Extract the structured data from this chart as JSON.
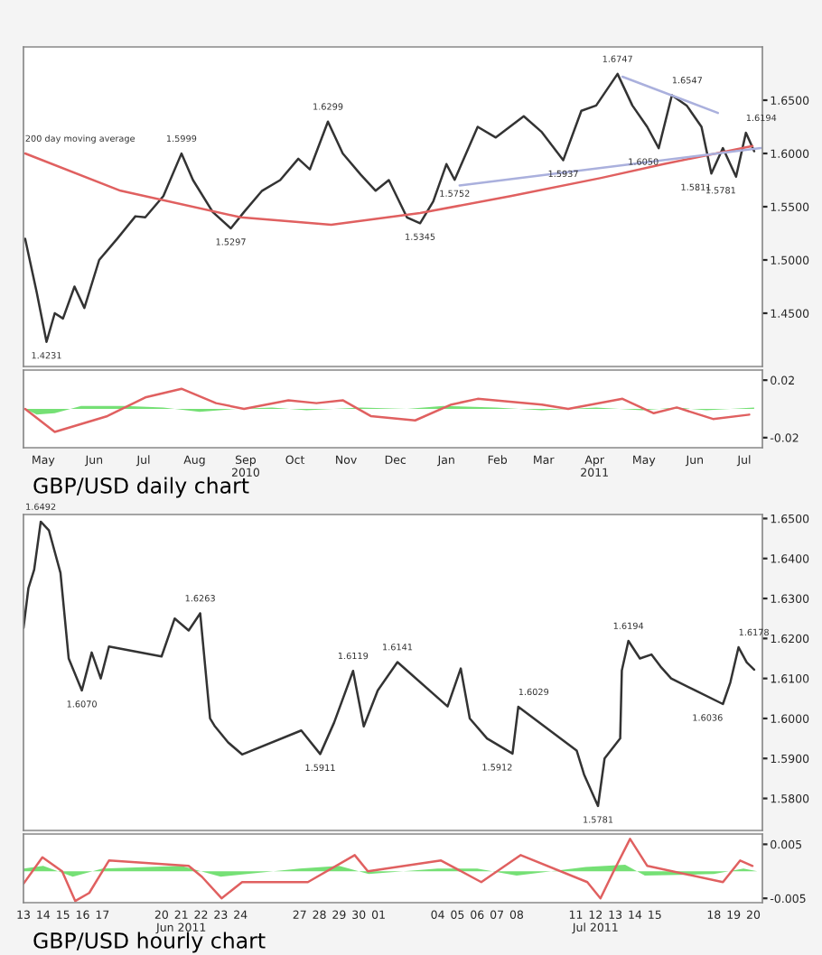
{
  "chart_data": [
    {
      "type": "line",
      "xlim": [
        "2010-04-19",
        "2011-07-12"
      ],
      "ylim": [
        1.4,
        1.7
      ],
      "xticks": [
        "2010-05-01",
        "2010-06-01",
        "2010-07-01",
        "2010-08-01",
        "2010-09-01",
        "2010-10-01",
        "2010-11-01",
        "2010-12-01",
        "2011-01-01",
        "2011-02-01",
        "2011-03-01",
        "2011-04-01",
        "2011-05-01",
        "2011-06-01",
        "2011-07-01"
      ],
      "yticks": [
        {
          "value": 1.45,
          "label": "1.4500"
        },
        {
          "value": 1.5,
          "label": "1.5000"
        },
        {
          "value": 1.55,
          "label": "1.5500"
        },
        {
          "value": 1.6,
          "label": "1.6000"
        },
        {
          "value": 1.65,
          "label": "1.6500"
        }
      ],
      "tick_labels": "y",
      "grid": false,
      "legend": false,
      "series": [
        {
          "color": "#333333",
          "x": [
            "2010-04-20",
            "2010-04-27",
            "2010-05-03",
            "2010-05-08",
            "2010-05-13",
            "2010-05-20",
            "2010-05-26",
            "2010-06-04",
            "2010-06-15",
            "2010-06-26",
            "2010-07-02",
            "2010-07-13",
            "2010-07-24",
            "2010-07-31",
            "2010-08-12",
            "2010-08-23",
            "2010-08-31",
            "2010-09-11",
            "2010-09-22",
            "2010-10-03",
            "2010-10-10",
            "2010-10-21",
            "2010-10-30",
            "2010-11-10",
            "2010-11-19",
            "2010-11-27",
            "2010-12-08",
            "2010-12-16",
            "2010-12-24",
            "2011-01-01",
            "2011-01-06",
            "2011-01-20",
            "2011-01-31",
            "2011-02-17",
            "2011-02-28",
            "2011-03-13",
            "2011-03-24",
            "2011-04-02",
            "2011-04-15",
            "2011-04-24",
            "2011-05-03",
            "2011-05-10",
            "2011-05-18",
            "2011-05-27",
            "2011-06-05",
            "2011-06-11",
            "2011-06-18",
            "2011-06-26",
            "2011-07-02",
            "2011-07-07"
          ],
          "values": [
            1.52,
            1.47,
            1.4231,
            1.45,
            1.445,
            1.475,
            1.455,
            1.5,
            1.52,
            1.541,
            1.54,
            1.56,
            1.5999,
            1.575,
            1.545,
            1.5297,
            1.545,
            1.565,
            1.575,
            1.595,
            1.585,
            1.6299,
            1.6,
            1.58,
            1.565,
            1.575,
            1.54,
            1.5345,
            1.555,
            1.59,
            1.5752,
            1.625,
            1.615,
            1.635,
            1.62,
            1.5937,
            1.64,
            1.645,
            1.6747,
            1.645,
            1.625,
            1.605,
            1.6547,
            1.645,
            1.625,
            1.5811,
            1.605,
            1.5781,
            1.6194,
            1.6021
          ]
        },
        {
          "color": "#e06060",
          "x": [
            "2010-04-20",
            "2010-06-17",
            "2010-08-29",
            "2010-10-23",
            "2010-12-16",
            "2011-02-09",
            "2011-04-05",
            "2011-05-13",
            "2011-07-06"
          ],
          "values": [
            1.6,
            1.565,
            1.54,
            1.533,
            1.544,
            1.56,
            1.577,
            1.59,
            1.607
          ]
        },
        {
          "color": "#aab0dd",
          "x": [
            "2011-01-09",
            "2011-07-11"
          ],
          "values": [
            1.57,
            1.605
          ]
        },
        {
          "color": "#aab0dd",
          "x": [
            "2011-04-18",
            "2011-06-15"
          ],
          "values": [
            1.672,
            1.638
          ]
        }
      ],
      "annotations": [
        {
          "text": "200 day moving average",
          "x": "2010-04-20",
          "y": 1.6
        },
        {
          "text": "1.4231",
          "x": "2010-05-03",
          "y": 1.4231
        },
        {
          "text": "1.5999",
          "x": "2010-07-24",
          "y": 1.5999
        },
        {
          "text": "1.5297",
          "x": "2010-08-23",
          "y": 1.5297
        },
        {
          "text": "1.6299",
          "x": "2010-10-21",
          "y": 1.6299
        },
        {
          "text": "1.5345",
          "x": "2010-12-16",
          "y": 1.5345
        },
        {
          "text": "1.5752",
          "x": "2011-01-06",
          "y": 1.5752
        },
        {
          "text": "1.5937",
          "x": "2011-03-13",
          "y": 1.5937
        },
        {
          "text": "1.6747",
          "x": "2011-04-15",
          "y": 1.6747
        },
        {
          "text": "1.6050",
          "x": "2011-05-10",
          "y": 1.605
        },
        {
          "text": "1.6547",
          "x": "2011-05-18",
          "y": 1.6547
        },
        {
          "text": "1.5811",
          "x": "2011-06-11",
          "y": 1.5811
        },
        {
          "text": "1.5781",
          "x": "2011-06-26",
          "y": 1.5781
        },
        {
          "text": "1.6194",
          "x": "2011-07-02",
          "y": 1.6194
        }
      ]
    },
    {
      "type": "line",
      "xlim": [
        "2010-04-19",
        "2011-07-12"
      ],
      "ylim": [
        -0.027,
        0.027
      ],
      "yticks": [
        {
          "value": -0.02,
          "label": "-0.02"
        },
        {
          "value": 0.02,
          "label": "0.02"
        }
      ],
      "xticks": [
        {
          "value": "2010-05-01",
          "label": "May"
        },
        {
          "value": "2010-06-01",
          "label": "Jun"
        },
        {
          "value": "2010-07-01",
          "label": "Jul"
        },
        {
          "value": "2010-08-01",
          "label": "Aug"
        },
        {
          "value": "2010-09-01",
          "label": "Sep\n2010"
        },
        {
          "value": "2010-10-01",
          "label": "Oct"
        },
        {
          "value": "2010-11-01",
          "label": "Nov"
        },
        {
          "value": "2010-12-01",
          "label": "Dec"
        },
        {
          "value": "2011-01-01",
          "label": "Jan"
        },
        {
          "value": "2011-02-01",
          "label": "Feb"
        },
        {
          "value": "2011-03-01",
          "label": "Mar"
        },
        {
          "value": "2011-04-01",
          "label": "Apr\n2011"
        },
        {
          "value": "2011-05-01",
          "label": "May"
        },
        {
          "value": "2011-06-01",
          "label": "Jun"
        },
        {
          "value": "2011-07-01",
          "label": "Jul"
        }
      ],
      "grid": false,
      "legend": false,
      "series": [
        {
          "type": "area",
          "color": "#66dd66",
          "x": [
            "2010-04-20",
            "2010-04-27",
            "2010-05-08",
            "2010-05-24",
            "2010-06-20",
            "2010-07-13",
            "2010-08-04",
            "2010-08-26",
            "2010-09-17",
            "2010-10-08",
            "2010-11-10",
            "2010-12-08",
            "2010-12-30",
            "2011-01-31",
            "2011-02-28",
            "2011-04-02",
            "2011-04-30",
            "2011-05-21",
            "2011-06-08",
            "2011-07-07"
          ],
          "values": [
            0,
            -0.004,
            -0.003,
            0.002,
            0.002,
            0.001,
            -0.002,
            0,
            0.001,
            -0.001,
            0.001,
            0,
            0.002,
            0.001,
            -0.001,
            0.001,
            -0.001,
            0.001,
            -0.001,
            0.001
          ]
        },
        {
          "color": "#e06060",
          "x": [
            "2010-04-20",
            "2010-05-08",
            "2010-06-09",
            "2010-07-02",
            "2010-07-24",
            "2010-08-14",
            "2010-08-31",
            "2010-09-27",
            "2010-10-14",
            "2010-10-30",
            "2010-11-16",
            "2010-12-13",
            "2011-01-04",
            "2011-01-20",
            "2011-02-28",
            "2011-03-16",
            "2011-04-18",
            "2011-05-07",
            "2011-05-21",
            "2011-06-12",
            "2011-07-04"
          ],
          "values": [
            0,
            -0.016,
            -0.005,
            0.008,
            0.014,
            0.004,
            0,
            0.006,
            0.004,
            0.006,
            -0.005,
            -0.008,
            0.003,
            0.007,
            0.003,
            0,
            0.007,
            -0.003,
            0.001,
            -0.007,
            -0.004
          ]
        }
      ],
      "annotations": [
        "GBP/USD daily chart"
      ]
    },
    {
      "type": "line",
      "xlim": [
        "2011-06-13T00:00",
        "2011-07-20T11:00"
      ],
      "ylim": [
        1.572,
        1.651
      ],
      "xticks": [
        "2011-06-13",
        "2011-06-14",
        "2011-06-15",
        "2011-06-16",
        "2011-06-17",
        "2011-06-20",
        "2011-06-21",
        "2011-06-22",
        "2011-06-23",
        "2011-06-24",
        "2011-06-27",
        "2011-06-28",
        "2011-06-29",
        "2011-06-30",
        "2011-07-01",
        "2011-07-04",
        "2011-07-05",
        "2011-07-06",
        "2011-07-07",
        "2011-07-08",
        "2011-07-11",
        "2011-07-12",
        "2011-07-13",
        "2011-07-14",
        "2011-07-15",
        "2011-07-18",
        "2011-07-19",
        "2011-07-20"
      ],
      "yticks": [
        {
          "value": 1.58,
          "label": "1.5800"
        },
        {
          "value": 1.59,
          "label": "1.5900"
        },
        {
          "value": 1.6,
          "label": "1.6000"
        },
        {
          "value": 1.61,
          "label": "1.6100"
        },
        {
          "value": 1.62,
          "label": "1.6200"
        },
        {
          "value": 1.63,
          "label": "1.6300"
        },
        {
          "value": 1.64,
          "label": "1.6400"
        },
        {
          "value": 1.65,
          "label": "1.6500"
        }
      ],
      "tick_labels": "y",
      "grid": false,
      "legend": false,
      "series": [
        {
          "color": "#333333",
          "x": [
            "2011-06-13T00:00",
            "2011-06-13T06:00",
            "2011-06-13T13:00",
            "2011-06-13T21:00",
            "2011-06-14T07:00",
            "2011-06-14T21:00",
            "2011-06-15T07:00",
            "2011-06-15T23:00",
            "2011-06-16T11:00",
            "2011-06-16T22:00",
            "2011-06-17T08:00",
            "2011-06-20T00:00",
            "2011-06-20T16:00",
            "2011-06-21T09:00",
            "2011-06-21T23:00",
            "2011-06-22T11:00",
            "2011-06-22T17:00",
            "2011-06-23T09:00",
            "2011-06-24T02:00",
            "2011-06-27T02:00",
            "2011-06-28T01:00",
            "2011-06-28T18:00",
            "2011-06-29T17:00",
            "2011-06-30T06:00",
            "2011-06-30T23:00",
            "2011-07-01T23:00",
            "2011-07-04T12:00",
            "2011-07-05T04:00",
            "2011-07-05T15:00",
            "2011-07-06T12:00",
            "2011-07-07T19:00",
            "2011-07-08T02:00",
            "2011-07-11T01:00",
            "2011-07-11T10:00",
            "2011-07-12T03:00",
            "2011-07-12T11:00",
            "2011-07-13T06:00",
            "2011-07-13T08:00",
            "2011-07-13T16:00",
            "2011-07-14T06:00",
            "2011-07-14T20:00",
            "2011-07-15T07:00",
            "2011-07-15T20:00",
            "2011-07-18T11:00",
            "2011-07-18T20:00",
            "2011-07-19T06:00",
            "2011-07-19T16:00",
            "2011-07-20T01:00"
          ],
          "values": [
            1.6226,
            1.6326,
            1.6372,
            1.6492,
            1.647,
            1.6364,
            1.615,
            1.607,
            1.6165,
            1.61,
            1.618,
            1.6155,
            1.625,
            1.622,
            1.6263,
            1.6,
            1.598,
            1.594,
            1.591,
            1.597,
            1.5911,
            1.599,
            1.6119,
            1.598,
            1.607,
            1.6141,
            1.603,
            1.6125,
            1.6,
            1.595,
            1.5912,
            1.6029,
            1.592,
            1.586,
            1.5781,
            1.59,
            1.595,
            1.612,
            1.6194,
            1.615,
            1.616,
            1.613,
            1.61,
            1.6036,
            1.609,
            1.6178,
            1.614,
            1.6122
          ]
        }
      ],
      "annotations": [
        {
          "text": "1.6492",
          "x": "2011-06-13T21:00",
          "y": 1.6492
        },
        {
          "text": "1.6070",
          "x": "2011-06-15T23:00",
          "y": 1.607
        },
        {
          "text": "1.6263",
          "x": "2011-06-21T23:00",
          "y": 1.6263
        },
        {
          "text": "1.5911",
          "x": "2011-06-28T01:00",
          "y": 1.5911
        },
        {
          "text": "1.6119",
          "x": "2011-06-29T17:00",
          "y": 1.6119
        },
        {
          "text": "1.6141",
          "x": "2011-07-01T23:00",
          "y": 1.6141
        },
        {
          "text": "1.5912",
          "x": "2011-07-07T19:00",
          "y": 1.5912
        },
        {
          "text": "1.6029",
          "x": "2011-07-08T02:00",
          "y": 1.6029
        },
        {
          "text": "1.5781",
          "x": "2011-07-12T03:00",
          "y": 1.5781
        },
        {
          "text": "1.6194",
          "x": "2011-07-13T16:00",
          "y": 1.6194
        },
        {
          "text": "1.6036",
          "x": "2011-07-18T11:00",
          "y": 1.6036
        },
        {
          "text": "1.6178",
          "x": "2011-07-19T06:00",
          "y": 1.6178
        }
      ]
    },
    {
      "type": "line",
      "xlim": [
        "2011-06-13T00:00",
        "2011-07-20T11:00"
      ],
      "ylim": [
        -0.0058,
        0.0069
      ],
      "yticks": [
        {
          "value": -0.005,
          "label": "-0.005"
        },
        {
          "value": 0.005,
          "label": "0.005"
        }
      ],
      "xticks": [
        {
          "value": "2011-06-13",
          "label": "13"
        },
        {
          "value": "2011-06-14",
          "label": "14"
        },
        {
          "value": "2011-06-15",
          "label": "15"
        },
        {
          "value": "2011-06-16",
          "label": "16"
        },
        {
          "value": "2011-06-17",
          "label": "17"
        },
        {
          "value": "2011-06-20",
          "label": "20"
        },
        {
          "value": "2011-06-21",
          "label": "21\nJun 2011"
        },
        {
          "value": "2011-06-22",
          "label": "22"
        },
        {
          "value": "2011-06-23",
          "label": "23"
        },
        {
          "value": "2011-06-24",
          "label": "24"
        },
        {
          "value": "2011-06-27",
          "label": "27"
        },
        {
          "value": "2011-06-28",
          "label": "28"
        },
        {
          "value": "2011-06-29",
          "label": "29"
        },
        {
          "value": "2011-06-30",
          "label": "30"
        },
        {
          "value": "2011-07-01",
          "label": "01"
        },
        {
          "value": "2011-07-04",
          "label": "04"
        },
        {
          "value": "2011-07-05",
          "label": "05"
        },
        {
          "value": "2011-07-06",
          "label": "06"
        },
        {
          "value": "2011-07-07",
          "label": "07"
        },
        {
          "value": "2011-07-08",
          "label": "08"
        },
        {
          "value": "2011-07-11",
          "label": "11"
        },
        {
          "value": "2011-07-12",
          "label": "12\nJul 2011"
        },
        {
          "value": "2011-07-13",
          "label": "13"
        },
        {
          "value": "2011-07-14",
          "label": "14"
        },
        {
          "value": "2011-07-15",
          "label": "15"
        },
        {
          "value": "2011-07-18",
          "label": "18"
        },
        {
          "value": "2011-07-19",
          "label": "19"
        },
        {
          "value": "2011-07-20",
          "label": "20"
        }
      ],
      "grid": false,
      "legend": false,
      "series": [
        {
          "type": "area",
          "color": "#66dd66",
          "x": [
            "2011-06-13T00:00",
            "2011-06-14T00:00",
            "2011-06-15T12:00",
            "2011-06-17T00:00",
            "2011-06-21T00:00",
            "2011-06-23T00:00",
            "2011-06-27T00:00",
            "2011-06-29T00:00",
            "2011-06-30T12:00",
            "2011-07-04T00:00",
            "2011-07-06T00:00",
            "2011-07-08T00:00",
            "2011-07-11T12:00",
            "2011-07-13T12:00",
            "2011-07-14T12:00",
            "2011-07-18T00:00",
            "2011-07-19T12:00",
            "2011-07-20T05:00"
          ],
          "values": [
            0.0005,
            0.001,
            -0.001,
            0.0005,
            0.001,
            -0.001,
            0.0005,
            0.001,
            -0.0005,
            0.0005,
            0.0005,
            -0.0008,
            0.0008,
            0.0012,
            -0.0008,
            -0.0005,
            0.0005,
            0
          ]
        },
        {
          "color": "#e06060",
          "x": [
            "2011-06-13T00:00",
            "2011-06-13T23:00",
            "2011-06-14T23:00",
            "2011-06-15T15:00",
            "2011-06-16T08:00",
            "2011-06-17T08:00",
            "2011-06-21T09:00",
            "2011-06-22T01:00",
            "2011-06-23T01:00",
            "2011-06-24T02:00",
            "2011-06-27T10:00",
            "2011-06-29T19:00",
            "2011-06-30T11:00",
            "2011-07-04T04:00",
            "2011-07-06T05:00",
            "2011-07-08T05:00",
            "2011-07-11T14:00",
            "2011-07-12T06:00",
            "2011-07-12T22:00",
            "2011-07-13T18:00",
            "2011-07-14T15:00",
            "2011-07-18T11:00",
            "2011-07-19T08:00",
            "2011-07-19T23:00"
          ],
          "values": [
            -0.0023,
            0.0026,
            0,
            -0.0055,
            -0.004,
            0.002,
            0.001,
            -0.001,
            -0.005,
            -0.002,
            -0.002,
            0.003,
            0,
            0.002,
            -0.002,
            0.003,
            -0.002,
            -0.005,
            0,
            0.006,
            0.001,
            -0.002,
            0.002,
            0.001
          ]
        }
      ],
      "annotations": [
        "GBP/USD hourly chart"
      ]
    }
  ]
}
